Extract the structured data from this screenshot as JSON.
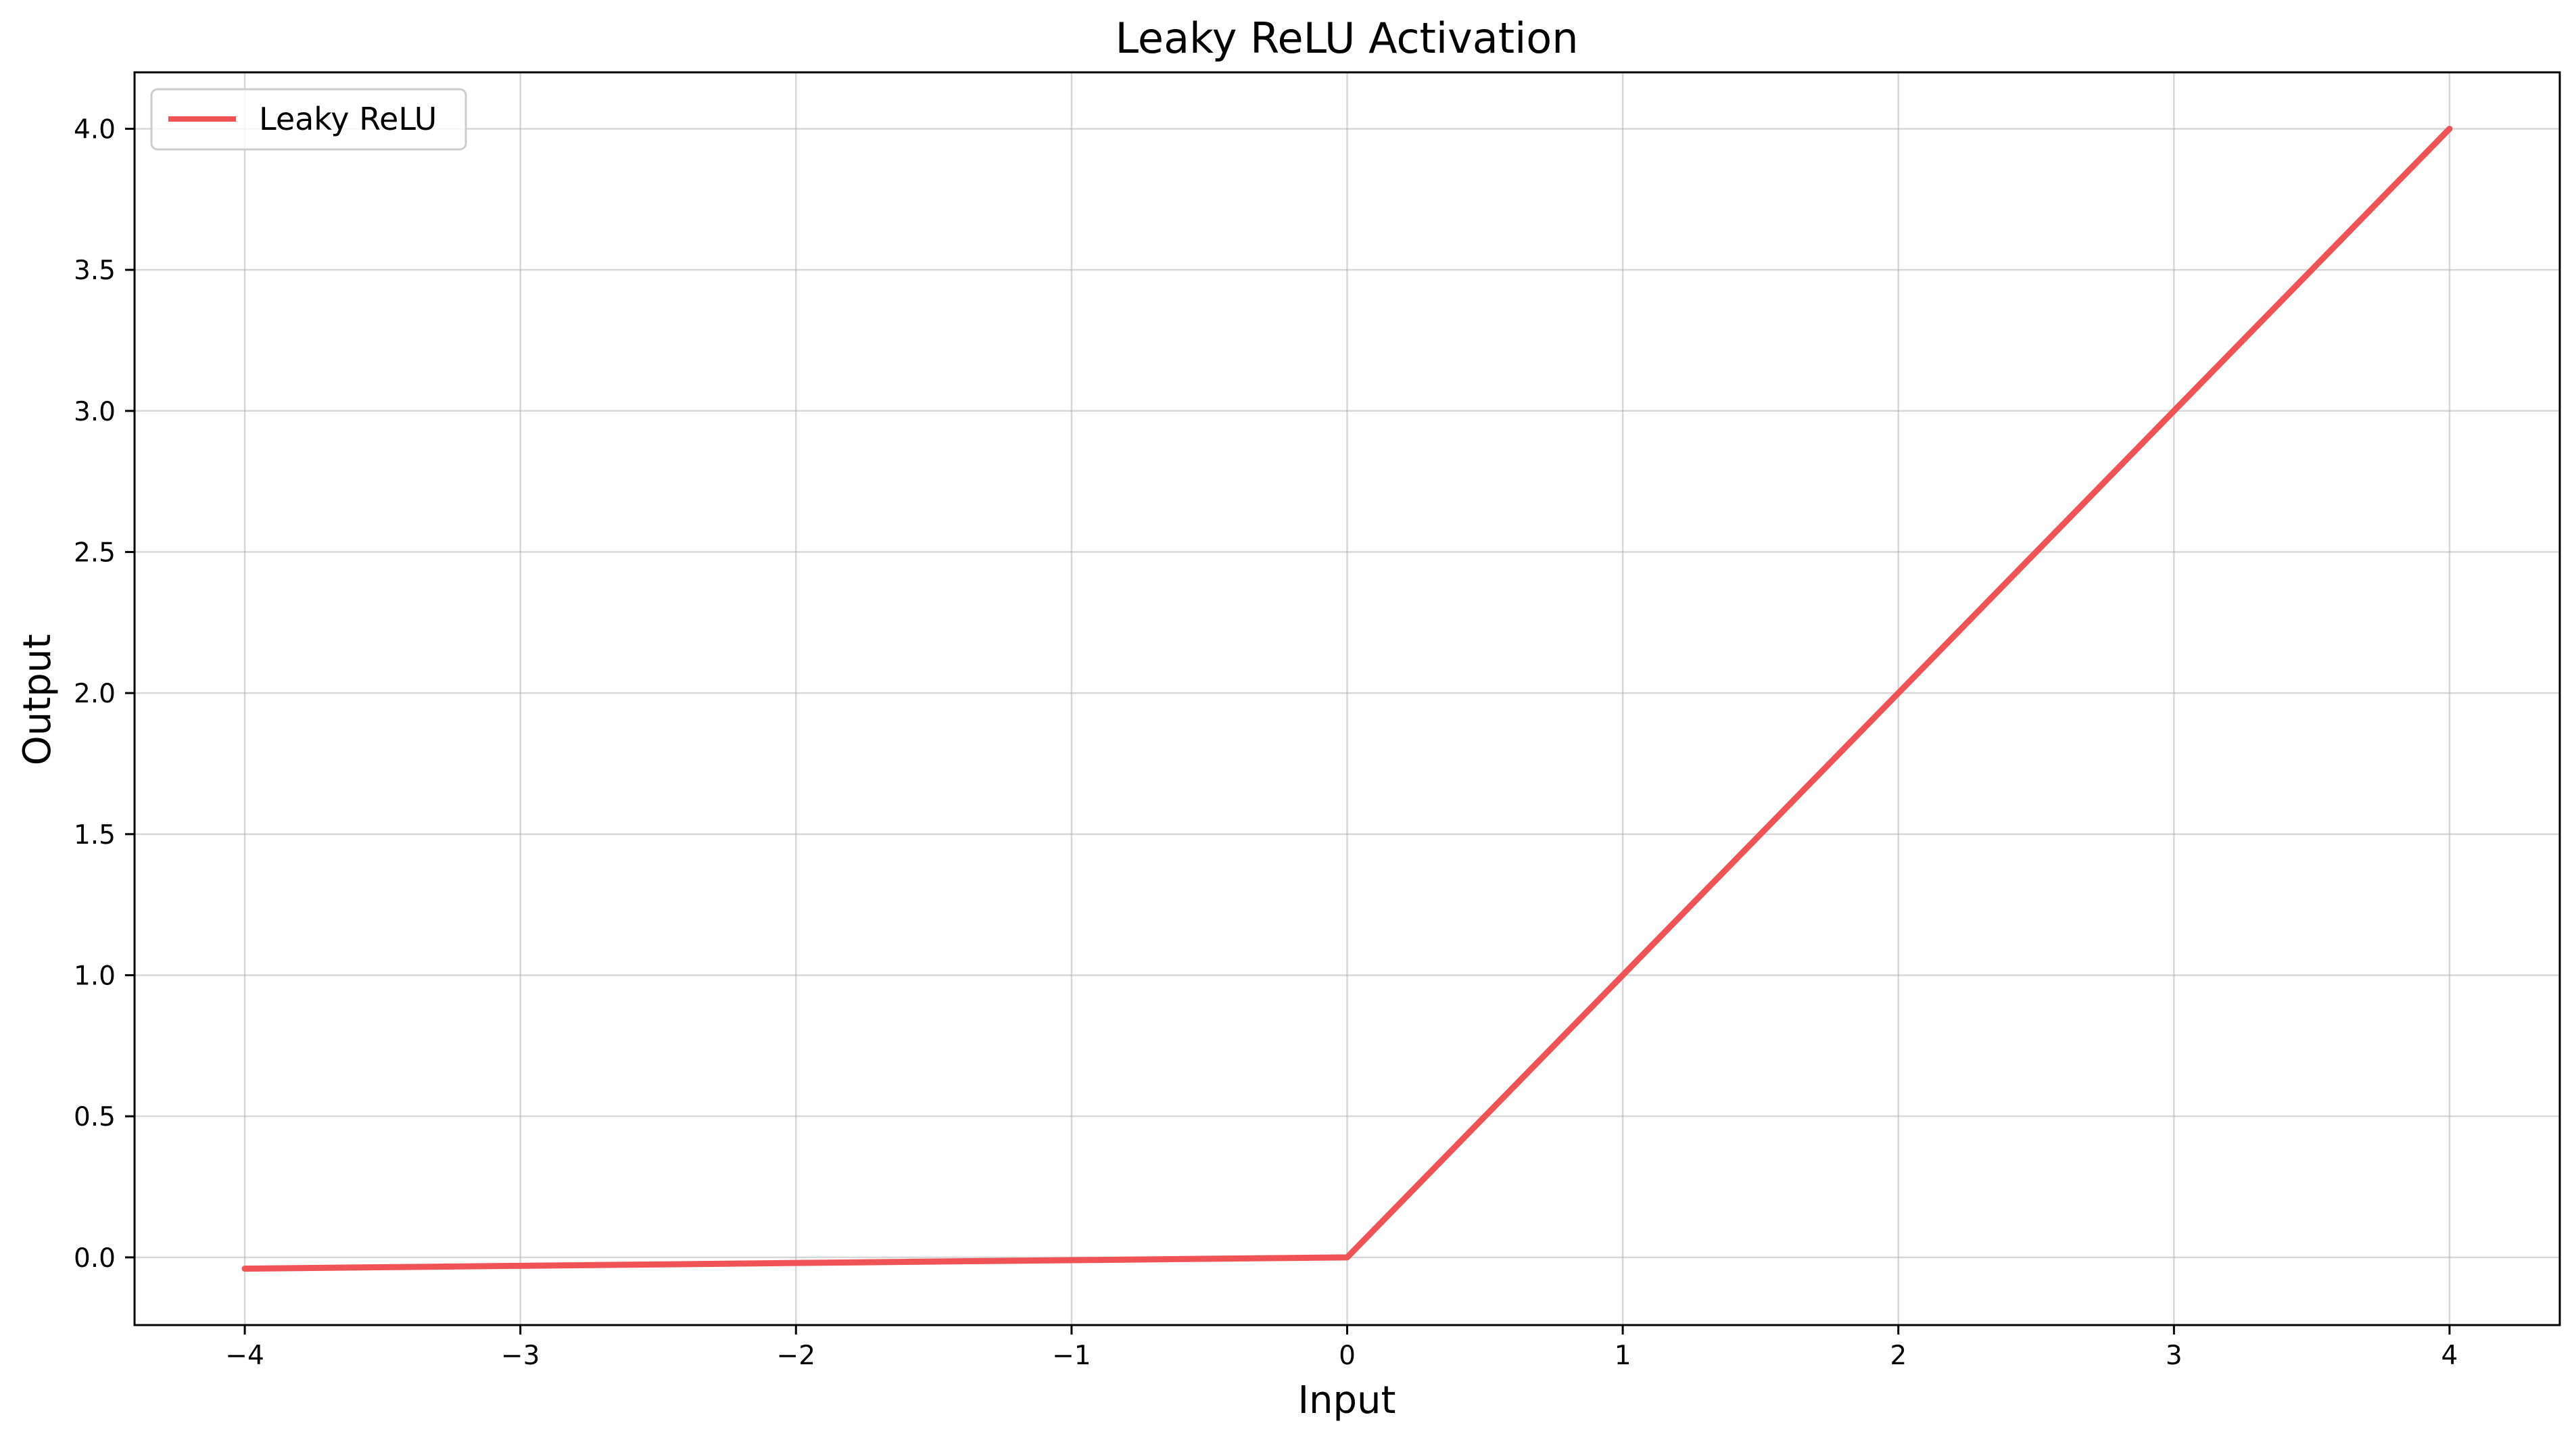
{
  "chart_data": {
    "type": "line",
    "title": "Leaky ReLU Activation",
    "xlabel": "Input",
    "ylabel": "Output",
    "xlim": [
      -4.4,
      4.4
    ],
    "ylim": [
      -0.24,
      4.2
    ],
    "x_ticks": [
      -4,
      -3,
      -2,
      -1,
      0,
      1,
      2,
      3,
      4
    ],
    "x_tick_labels": [
      "−4",
      "−3",
      "−2",
      "−1",
      "0",
      "1",
      "2",
      "3",
      "4"
    ],
    "y_ticks": [
      0.0,
      0.5,
      1.0,
      1.5,
      2.0,
      2.5,
      3.0,
      3.5,
      4.0
    ],
    "y_tick_labels": [
      "0.0",
      "0.5",
      "1.0",
      "1.5",
      "2.0",
      "2.5",
      "3.0",
      "3.5",
      "4.0"
    ],
    "grid": true,
    "legend_position": "top-left",
    "series": [
      {
        "name": "Leaky ReLU",
        "color": "#f05356",
        "x": [
          -4,
          -3,
          -2,
          -1,
          0,
          1,
          2,
          3,
          4
        ],
        "y": [
          -0.04,
          -0.03,
          -0.02,
          -0.01,
          0.0,
          1.0,
          2.0,
          3.0,
          4.0
        ]
      }
    ]
  }
}
